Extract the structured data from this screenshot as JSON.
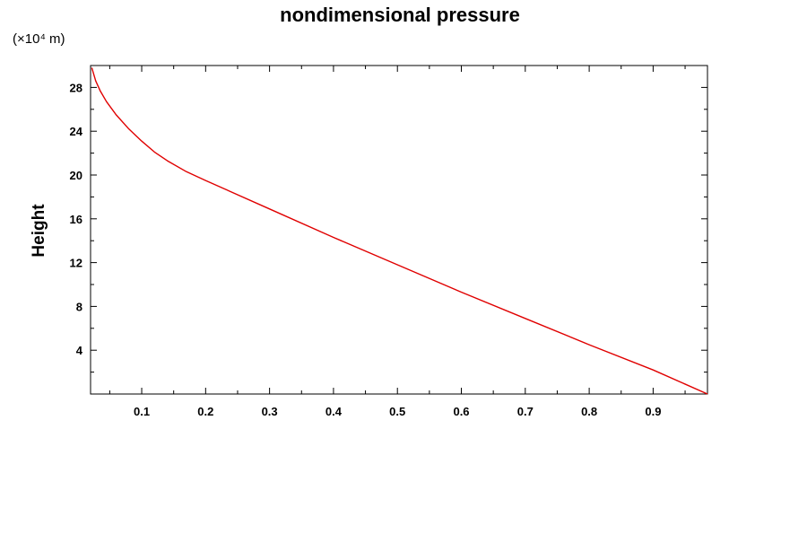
{
  "chart_data": {
    "type": "line",
    "title": "nondimensional pressure",
    "xlabel": "",
    "ylabel": "Height",
    "y_scale_note": "(×10⁴ m)",
    "xlim": [
      0.02,
      0.985
    ],
    "ylim": [
      0,
      30
    ],
    "x_ticks": [
      0.1,
      0.2,
      0.3,
      0.4,
      0.5,
      0.6,
      0.7,
      0.8,
      0.9
    ],
    "x_tick_labels": [
      "0.1",
      "0.2",
      "0.3",
      "0.4",
      "0.5",
      "0.6",
      "0.7",
      "0.8",
      "0.9"
    ],
    "y_ticks": [
      4,
      8,
      12,
      16,
      20,
      24,
      28
    ],
    "y_tick_labels": [
      "4",
      "8",
      "12",
      "16",
      "20",
      "24",
      "28"
    ],
    "grid": false,
    "series": [
      {
        "color": "#e00000",
        "x": [
          0.985,
          0.9,
          0.8,
          0.7,
          0.6,
          0.5,
          0.4,
          0.3,
          0.2,
          0.17,
          0.14,
          0.12,
          0.1,
          0.08,
          0.06,
          0.045,
          0.035,
          0.028,
          0.022
        ],
        "y": [
          0,
          2.2,
          4.5,
          6.9,
          9.3,
          11.8,
          14.3,
          16.9,
          19.5,
          20.3,
          21.3,
          22.1,
          23.1,
          24.2,
          25.5,
          26.7,
          27.7,
          28.6,
          29.8
        ]
      }
    ]
  }
}
